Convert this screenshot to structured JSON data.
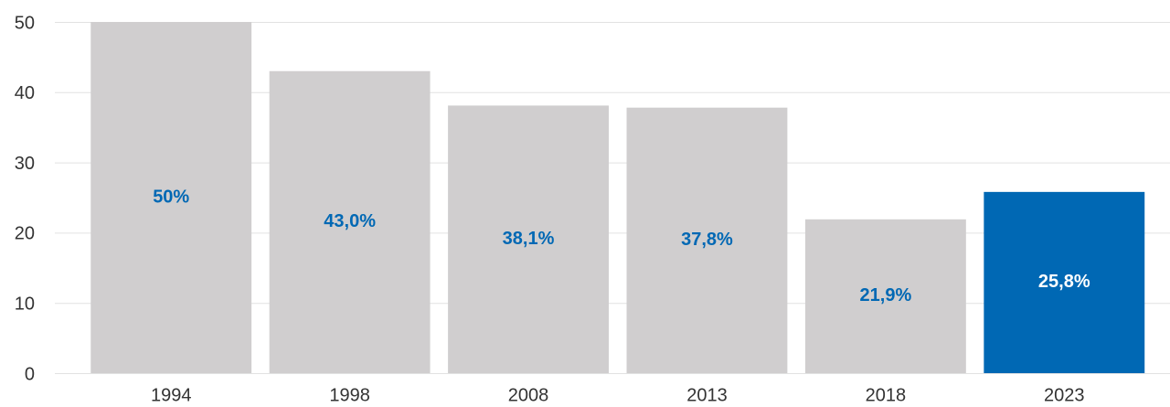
{
  "chart_data": {
    "type": "bar",
    "categories": [
      "1994",
      "1998",
      "2008",
      "2013",
      "2018",
      "2023"
    ],
    "values": [
      50,
      43.0,
      38.1,
      37.8,
      21.9,
      25.8
    ],
    "value_labels": [
      "50%",
      "43,0%",
      "38,1%",
      "37,8%",
      "21,9%",
      "25,8%"
    ],
    "colors": [
      "#d0cecf",
      "#d0cecf",
      "#d0cecf",
      "#d0cecf",
      "#d0cecf",
      "#0068b4"
    ],
    "label_colors": [
      "#0068b4",
      "#0068b4",
      "#0068b4",
      "#0068b4",
      "#0068b4",
      "#ffffff"
    ],
    "ylim": [
      0,
      50
    ],
    "yticks": [
      0,
      10,
      20,
      30,
      40,
      50
    ],
    "grid": true
  }
}
